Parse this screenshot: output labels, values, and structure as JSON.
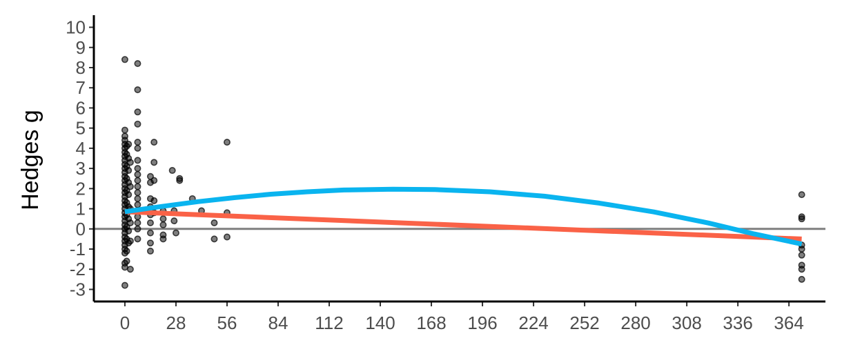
{
  "chart_data": {
    "type": "scatter",
    "title": "",
    "xlabel": "",
    "ylabel": "Hedges g",
    "xlim": [
      -17,
      384
    ],
    "ylim": [
      -3.6,
      10.6
    ],
    "x_ticks": [
      0,
      28,
      56,
      84,
      112,
      140,
      168,
      196,
      224,
      252,
      280,
      308,
      336,
      364
    ],
    "y_ticks": [
      -3,
      -2,
      -1,
      0,
      1,
      2,
      3,
      4,
      5,
      6,
      7,
      8,
      9,
      10
    ],
    "x_tick_labels": [
      "0",
      "28",
      "56",
      "84",
      "112",
      "140",
      "168",
      "196",
      "224",
      "252",
      "280",
      "308",
      "336",
      "364"
    ],
    "y_tick_labels": [
      "-3",
      "-2",
      "-1",
      "0",
      "1",
      "2",
      "3",
      "4",
      "5",
      "6",
      "7",
      "8",
      "9",
      "10"
    ],
    "grid": false,
    "reference_line": {
      "y": 0,
      "color": "#7f7f7f"
    },
    "point_color": "#000000",
    "points": [
      {
        "x": 0,
        "y": 8.4
      },
      {
        "x": 0,
        "y": 4.9
      },
      {
        "x": 0,
        "y": 4.6
      },
      {
        "x": 0,
        "y": 4.4
      },
      {
        "x": 0,
        "y": 4.2
      },
      {
        "x": 0,
        "y": 4.0
      },
      {
        "x": 0,
        "y": 3.8
      },
      {
        "x": 0,
        "y": 3.6
      },
      {
        "x": 0,
        "y": 3.4
      },
      {
        "x": 0,
        "y": 3.2
      },
      {
        "x": 0,
        "y": 3.0
      },
      {
        "x": 0,
        "y": 2.8
      },
      {
        "x": 0,
        "y": 2.6
      },
      {
        "x": 0,
        "y": 2.4
      },
      {
        "x": 0,
        "y": 2.2
      },
      {
        "x": 0,
        "y": 2.0
      },
      {
        "x": 0,
        "y": 1.8
      },
      {
        "x": 0,
        "y": 1.6
      },
      {
        "x": 0,
        "y": 1.4
      },
      {
        "x": 0,
        "y": 1.2
      },
      {
        "x": 0,
        "y": 1.0
      },
      {
        "x": 0,
        "y": 0.8
      },
      {
        "x": 0,
        "y": 0.6
      },
      {
        "x": 0,
        "y": 0.4
      },
      {
        "x": 0,
        "y": 0.2
      },
      {
        "x": 0,
        "y": 0.0
      },
      {
        "x": 0,
        "y": -0.2
      },
      {
        "x": 0,
        "y": -0.4
      },
      {
        "x": 0,
        "y": -0.6
      },
      {
        "x": 0,
        "y": -0.8
      },
      {
        "x": 0,
        "y": -1.0
      },
      {
        "x": 0,
        "y": -1.2
      },
      {
        "x": 0,
        "y": -1.7
      },
      {
        "x": 0,
        "y": -1.9
      },
      {
        "x": 0,
        "y": -2.8
      },
      {
        "x": 1,
        "y": 4.1
      },
      {
        "x": 1,
        "y": 3.7
      },
      {
        "x": 1,
        "y": 3.1
      },
      {
        "x": 1,
        "y": 2.5
      },
      {
        "x": 1,
        "y": 1.9
      },
      {
        "x": 1,
        "y": 1.3
      },
      {
        "x": 1,
        "y": 0.7
      },
      {
        "x": 1,
        "y": 0.1
      },
      {
        "x": 1,
        "y": -0.5
      },
      {
        "x": 1,
        "y": -1.1
      },
      {
        "x": 1,
        "y": -1.6
      },
      {
        "x": 2,
        "y": 4.2
      },
      {
        "x": 2,
        "y": 3.5
      },
      {
        "x": 2,
        "y": 2.9
      },
      {
        "x": 2,
        "y": 2.3
      },
      {
        "x": 2,
        "y": 1.7
      },
      {
        "x": 2,
        "y": 1.1
      },
      {
        "x": 2,
        "y": 0.5
      },
      {
        "x": 2,
        "y": -0.1
      },
      {
        "x": 2,
        "y": -0.7
      },
      {
        "x": 3,
        "y": 3.3
      },
      {
        "x": 3,
        "y": 2.1
      },
      {
        "x": 3,
        "y": 1.0
      },
      {
        "x": 3,
        "y": 0.3
      },
      {
        "x": 3,
        "y": -0.6
      },
      {
        "x": 3,
        "y": -2.0
      },
      {
        "x": 7,
        "y": 8.2
      },
      {
        "x": 7,
        "y": 6.9
      },
      {
        "x": 7,
        "y": 5.8
      },
      {
        "x": 7,
        "y": 5.2
      },
      {
        "x": 7,
        "y": 4.3
      },
      {
        "x": 7,
        "y": 4.0
      },
      {
        "x": 7,
        "y": 3.4
      },
      {
        "x": 7,
        "y": 3.0
      },
      {
        "x": 7,
        "y": 2.7
      },
      {
        "x": 7,
        "y": 2.4
      },
      {
        "x": 7,
        "y": 2.1
      },
      {
        "x": 7,
        "y": 1.8
      },
      {
        "x": 7,
        "y": 1.5
      },
      {
        "x": 7,
        "y": 1.2
      },
      {
        "x": 7,
        "y": 0.9
      },
      {
        "x": 7,
        "y": 0.6
      },
      {
        "x": 7,
        "y": 0.3
      },
      {
        "x": 7,
        "y": 0.0
      },
      {
        "x": 7,
        "y": -0.5
      },
      {
        "x": 14,
        "y": 2.6
      },
      {
        "x": 14,
        "y": 2.3
      },
      {
        "x": 14,
        "y": 1.5
      },
      {
        "x": 14,
        "y": 1.1
      },
      {
        "x": 14,
        "y": 0.7
      },
      {
        "x": 14,
        "y": 0.3
      },
      {
        "x": 14,
        "y": -0.2
      },
      {
        "x": 14,
        "y": -0.7
      },
      {
        "x": 14,
        "y": -1.1
      },
      {
        "x": 16,
        "y": 4.3
      },
      {
        "x": 16,
        "y": 3.3
      },
      {
        "x": 16,
        "y": 2.4
      },
      {
        "x": 16,
        "y": 1.4
      },
      {
        "x": 16,
        "y": 0.8
      },
      {
        "x": 21,
        "y": 0.9
      },
      {
        "x": 21,
        "y": 0.5
      },
      {
        "x": 21,
        "y": 0.2
      },
      {
        "x": 21,
        "y": -0.3
      },
      {
        "x": 21,
        "y": -0.5
      },
      {
        "x": 26,
        "y": 2.9
      },
      {
        "x": 27,
        "y": 0.9
      },
      {
        "x": 27,
        "y": 0.4
      },
      {
        "x": 28,
        "y": -0.2
      },
      {
        "x": 30,
        "y": 2.5
      },
      {
        "x": 30,
        "y": 2.4
      },
      {
        "x": 37,
        "y": 1.5
      },
      {
        "x": 42,
        "y": 0.9
      },
      {
        "x": 49,
        "y": 0.3
      },
      {
        "x": 49,
        "y": -0.5
      },
      {
        "x": 56,
        "y": 4.3
      },
      {
        "x": 56,
        "y": 0.8
      },
      {
        "x": 56,
        "y": -0.4
      },
      {
        "x": 371,
        "y": 1.7
      },
      {
        "x": 371,
        "y": 0.6
      },
      {
        "x": 371,
        "y": 0.5
      },
      {
        "x": 371,
        "y": -0.8
      },
      {
        "x": 371,
        "y": -1.0
      },
      {
        "x": 371,
        "y": -1.3
      },
      {
        "x": 371,
        "y": -1.8
      },
      {
        "x": 371,
        "y": -2.0
      },
      {
        "x": 371,
        "y": -2.5
      }
    ],
    "series": [
      {
        "type": "line",
        "color": "#fa6247",
        "x": [
          0,
          371
        ],
        "y": [
          0.85,
          -0.5
        ]
      },
      {
        "type": "line",
        "color": "#0ab4ef",
        "x": [
          0,
          20,
          40,
          60,
          80,
          100,
          120,
          147,
          170,
          200,
          230,
          260,
          290,
          320,
          345,
          371
        ],
        "y": [
          0.85,
          1.11,
          1.35,
          1.55,
          1.72,
          1.84,
          1.93,
          1.97,
          1.95,
          1.84,
          1.62,
          1.28,
          0.84,
          0.29,
          -0.25,
          -0.75
        ]
      }
    ]
  }
}
